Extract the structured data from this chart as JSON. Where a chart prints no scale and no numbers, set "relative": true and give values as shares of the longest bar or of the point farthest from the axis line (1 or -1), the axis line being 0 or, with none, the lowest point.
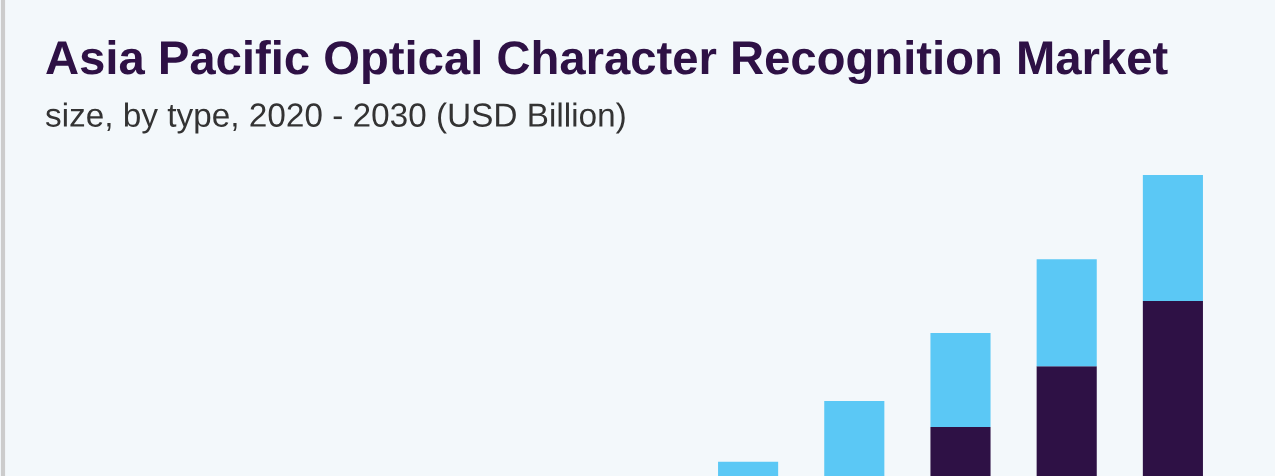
{
  "chart_data": {
    "type": "bar",
    "title": "Asia Pacific Optical Character Recognition Market",
    "subtitle": "size, by type, 2020 - 2030 (USD Billion)",
    "categories": [
      null,
      null,
      null,
      null,
      null
    ],
    "relative": true,
    "stacked": true,
    "grid": false,
    "series": [
      {
        "color": "#2e1145",
        "values": [
          0,
          0,
          0.163,
          0.365,
          0.581
        ]
      },
      {
        "color": "#5bc8f5",
        "values": [
          0.047,
          0.249,
          0.312,
          0.355,
          0.419
        ]
      }
    ]
  }
}
